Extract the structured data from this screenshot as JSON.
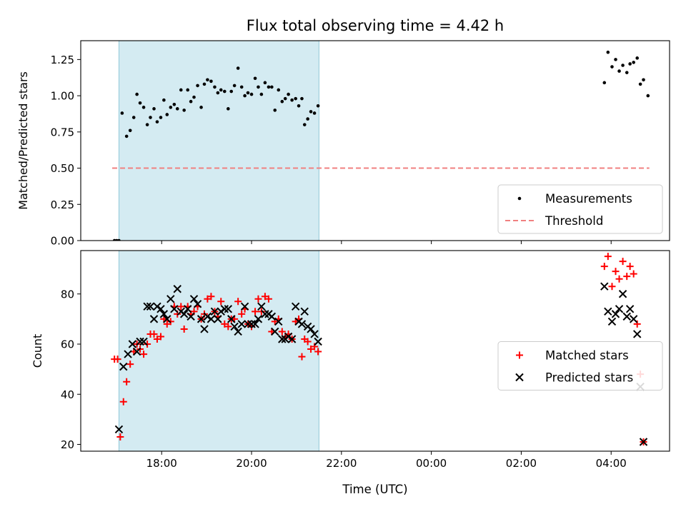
{
  "chart_data": {
    "title": "Flux total observing time = 4.42 h",
    "xlabel": "Time (UTC)",
    "x_unit": "hours after 00:00 UTC of the evening date",
    "x_range": [
      16.2,
      29.3
    ],
    "x_ticks": [
      {
        "v": 18,
        "label": "18:00"
      },
      {
        "v": 20,
        "label": "20:00"
      },
      {
        "v": 22,
        "label": "22:00"
      },
      {
        "v": 24,
        "label": "00:00"
      },
      {
        "v": 26,
        "label": "02:00"
      },
      {
        "v": 28,
        "label": "04:00"
      }
    ],
    "shaded_span": [
      17.05,
      21.5
    ],
    "panels": [
      {
        "type": "scatter",
        "ylabel": "Matched/Predicted stars",
        "ylim": [
          0,
          1.38
        ],
        "y_ticks": [
          {
            "v": 0,
            "label": "0.00"
          },
          {
            "v": 0.25,
            "label": "0.25"
          },
          {
            "v": 0.5,
            "label": "0.50"
          },
          {
            "v": 0.75,
            "label": "0.75"
          },
          {
            "v": 1.0,
            "label": "1.00"
          },
          {
            "v": 1.25,
            "label": "1.25"
          }
        ],
        "legend": {
          "placement": "bottom-right"
        },
        "series": [
          {
            "name": "Measurements",
            "marker": "dot",
            "color": "#000000",
            "points": [
              [
                16.95,
                0.0
              ],
              [
                17.0,
                0.0
              ],
              [
                17.05,
                0.0
              ],
              [
                17.12,
                0.88
              ],
              [
                17.22,
                0.72
              ],
              [
                17.3,
                0.76
              ],
              [
                17.38,
                0.85
              ],
              [
                17.45,
                1.01
              ],
              [
                17.52,
                0.95
              ],
              [
                17.6,
                0.92
              ],
              [
                17.68,
                0.8
              ],
              [
                17.75,
                0.85
              ],
              [
                17.83,
                0.91
              ],
              [
                17.9,
                0.82
              ],
              [
                17.98,
                0.85
              ],
              [
                18.05,
                0.97
              ],
              [
                18.12,
                0.87
              ],
              [
                18.2,
                0.92
              ],
              [
                18.28,
                0.94
              ],
              [
                18.35,
                0.91
              ],
              [
                18.43,
                1.04
              ],
              [
                18.5,
                0.9
              ],
              [
                18.58,
                1.04
              ],
              [
                18.65,
                0.96
              ],
              [
                18.72,
                0.99
              ],
              [
                18.8,
                1.07
              ],
              [
                18.88,
                0.92
              ],
              [
                18.95,
                1.08
              ],
              [
                19.02,
                1.11
              ],
              [
                19.1,
                1.1
              ],
              [
                19.18,
                1.06
              ],
              [
                19.25,
                1.02
              ],
              [
                19.32,
                1.04
              ],
              [
                19.4,
                1.03
              ],
              [
                19.48,
                0.91
              ],
              [
                19.55,
                1.03
              ],
              [
                19.62,
                1.07
              ],
              [
                19.7,
                1.19
              ],
              [
                19.78,
                1.06
              ],
              [
                19.85,
                1.0
              ],
              [
                19.92,
                1.02
              ],
              [
                20.0,
                1.01
              ],
              [
                20.08,
                1.12
              ],
              [
                20.15,
                1.06
              ],
              [
                20.22,
                1.01
              ],
              [
                20.3,
                1.09
              ],
              [
                20.38,
                1.06
              ],
              [
                20.45,
                1.06
              ],
              [
                20.52,
                0.9
              ],
              [
                20.6,
                1.04
              ],
              [
                20.68,
                0.96
              ],
              [
                20.75,
                0.98
              ],
              [
                20.82,
                1.01
              ],
              [
                20.9,
                0.97
              ],
              [
                20.98,
                0.98
              ],
              [
                21.05,
                0.93
              ],
              [
                21.12,
                0.98
              ],
              [
                21.18,
                0.8
              ],
              [
                21.25,
                0.84
              ],
              [
                21.32,
                0.89
              ],
              [
                21.4,
                0.88
              ],
              [
                21.48,
                0.93
              ],
              [
                27.85,
                1.09
              ],
              [
                27.93,
                1.3
              ],
              [
                28.02,
                1.2
              ],
              [
                28.1,
                1.25
              ],
              [
                28.18,
                1.17
              ],
              [
                28.26,
                1.21
              ],
              [
                28.35,
                1.16
              ],
              [
                28.42,
                1.22
              ],
              [
                28.5,
                1.23
              ],
              [
                28.58,
                1.26
              ],
              [
                28.65,
                1.08
              ],
              [
                28.72,
                1.11
              ],
              [
                28.82,
                1.0
              ]
            ]
          },
          {
            "name": "Threshold",
            "type": "line",
            "style": "dashed",
            "color": "#f08080",
            "points": [
              [
                16.9,
                0.5
              ],
              [
                28.85,
                0.5
              ]
            ]
          }
        ]
      },
      {
        "type": "scatter",
        "ylabel": "Count",
        "ylim": [
          17.3,
          97.3
        ],
        "y_ticks": [
          {
            "v": 20,
            "label": "20"
          },
          {
            "v": 40,
            "label": "40"
          },
          {
            "v": 60,
            "label": "60"
          },
          {
            "v": 80,
            "label": "80"
          }
        ],
        "legend": {
          "placement": "center-right"
        },
        "series": [
          {
            "name": "Matched stars",
            "marker": "plus",
            "color": "#ff0000",
            "points": [
              [
                16.95,
                54
              ],
              [
                17.02,
                54
              ],
              [
                17.08,
                23
              ],
              [
                17.15,
                37
              ],
              [
                17.22,
                45
              ],
              [
                17.3,
                52
              ],
              [
                17.38,
                57
              ],
              [
                17.45,
                60
              ],
              [
                17.52,
                58
              ],
              [
                17.6,
                56
              ],
              [
                17.68,
                60
              ],
              [
                17.75,
                64
              ],
              [
                17.83,
                64
              ],
              [
                17.9,
                62
              ],
              [
                17.98,
                63
              ],
              [
                18.05,
                70
              ],
              [
                18.12,
                68
              ],
              [
                18.2,
                69
              ],
              [
                18.28,
                75
              ],
              [
                18.35,
                72
              ],
              [
                18.43,
                75
              ],
              [
                18.5,
                66
              ],
              [
                18.58,
                75
              ],
              [
                18.65,
                72
              ],
              [
                18.72,
                73
              ],
              [
                18.8,
                75
              ],
              [
                18.88,
                70
              ],
              [
                18.95,
                72
              ],
              [
                19.02,
                78
              ],
              [
                19.1,
                79
              ],
              [
                19.18,
                73
              ],
              [
                19.25,
                71
              ],
              [
                19.32,
                77
              ],
              [
                19.4,
                68
              ],
              [
                19.48,
                67
              ],
              [
                19.55,
                70
              ],
              [
                19.62,
                70
              ],
              [
                19.7,
                77
              ],
              [
                19.78,
                72
              ],
              [
                19.85,
                74
              ],
              [
                19.92,
                68
              ],
              [
                20.0,
                67
              ],
              [
                20.08,
                73
              ],
              [
                20.15,
                78
              ],
              [
                20.22,
                73
              ],
              [
                20.3,
                79
              ],
              [
                20.38,
                78
              ],
              [
                20.45,
                65
              ],
              [
                20.52,
                69
              ],
              [
                20.6,
                70
              ],
              [
                20.68,
                65
              ],
              [
                20.75,
                63
              ],
              [
                20.82,
                64
              ],
              [
                20.9,
                62
              ],
              [
                20.98,
                69
              ],
              [
                21.05,
                70
              ],
              [
                21.12,
                55
              ],
              [
                21.18,
                62
              ],
              [
                21.25,
                61
              ],
              [
                21.32,
                58
              ],
              [
                21.4,
                59
              ],
              [
                21.48,
                57
              ],
              [
                27.85,
                91
              ],
              [
                27.93,
                95
              ],
              [
                28.02,
                83
              ],
              [
                28.1,
                89
              ],
              [
                28.18,
                86
              ],
              [
                28.26,
                93
              ],
              [
                28.35,
                87
              ],
              [
                28.42,
                91
              ],
              [
                28.5,
                88
              ],
              [
                28.58,
                68
              ],
              [
                28.65,
                48
              ],
              [
                28.72,
                21
              ]
            ]
          },
          {
            "name": "Predicted stars",
            "marker": "x",
            "color": "#000000",
            "points": [
              [
                17.05,
                26
              ],
              [
                17.15,
                51
              ],
              [
                17.25,
                56
              ],
              [
                17.35,
                60
              ],
              [
                17.45,
                57
              ],
              [
                17.52,
                61
              ],
              [
                17.6,
                61
              ],
              [
                17.68,
                75
              ],
              [
                17.75,
                75
              ],
              [
                17.83,
                70
              ],
              [
                17.9,
                75
              ],
              [
                17.98,
                74
              ],
              [
                18.05,
                72
              ],
              [
                18.12,
                70
              ],
              [
                18.2,
                78
              ],
              [
                18.28,
                74
              ],
              [
                18.35,
                82
              ],
              [
                18.43,
                73
              ],
              [
                18.5,
                72
              ],
              [
                18.58,
                74
              ],
              [
                18.65,
                71
              ],
              [
                18.72,
                78
              ],
              [
                18.8,
                76
              ],
              [
                18.88,
                70
              ],
              [
                18.95,
                66
              ],
              [
                19.02,
                71
              ],
              [
                19.1,
                70
              ],
              [
                19.18,
                73
              ],
              [
                19.25,
                70
              ],
              [
                19.32,
                73
              ],
              [
                19.4,
                74
              ],
              [
                19.48,
                74
              ],
              [
                19.55,
                70
              ],
              [
                19.62,
                67
              ],
              [
                19.7,
                65
              ],
              [
                19.78,
                68
              ],
              [
                19.85,
                75
              ],
              [
                19.92,
                68
              ],
              [
                20.0,
                68
              ],
              [
                20.08,
                68
              ],
              [
                20.15,
                70
              ],
              [
                20.22,
                75
              ],
              [
                20.3,
                72
              ],
              [
                20.38,
                72
              ],
              [
                20.45,
                71
              ],
              [
                20.52,
                65
              ],
              [
                20.6,
                69
              ],
              [
                20.68,
                62
              ],
              [
                20.75,
                62
              ],
              [
                20.82,
                63
              ],
              [
                20.9,
                62
              ],
              [
                20.98,
                75
              ],
              [
                21.05,
                69
              ],
              [
                21.12,
                68
              ],
              [
                21.18,
                73
              ],
              [
                21.25,
                67
              ],
              [
                21.32,
                66
              ],
              [
                21.4,
                64
              ],
              [
                21.48,
                61
              ],
              [
                27.85,
                83
              ],
              [
                27.93,
                73
              ],
              [
                28.02,
                69
              ],
              [
                28.1,
                72
              ],
              [
                28.18,
                74
              ],
              [
                28.26,
                80
              ],
              [
                28.35,
                71
              ],
              [
                28.42,
                74
              ],
              [
                28.5,
                70
              ],
              [
                28.58,
                64
              ],
              [
                28.65,
                43
              ],
              [
                28.72,
                21
              ]
            ]
          }
        ]
      }
    ]
  }
}
